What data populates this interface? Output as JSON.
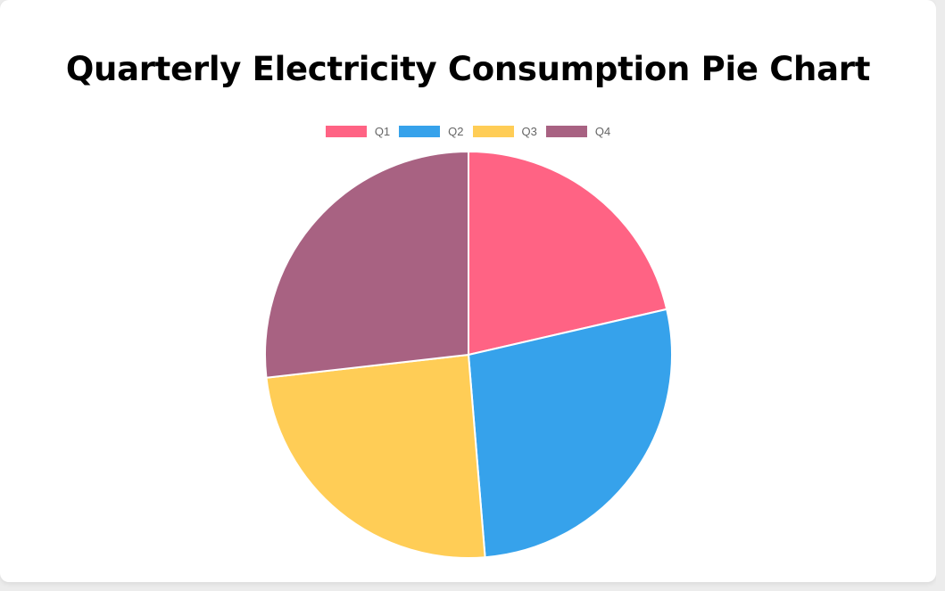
{
  "chart_data": {
    "type": "pie",
    "title": "Quarterly Electricity Consumption Pie Chart",
    "categories": [
      "Q1",
      "Q2",
      "Q3",
      "Q4"
    ],
    "values": [
      21.4,
      27.3,
      24.5,
      26.8
    ],
    "colors": [
      "#ff6384",
      "#36a2eb",
      "#ffcd56",
      "#a86282"
    ],
    "legend_position": "top",
    "start_angle": "top, clockwise",
    "slice_border_color": "#ffffff"
  }
}
